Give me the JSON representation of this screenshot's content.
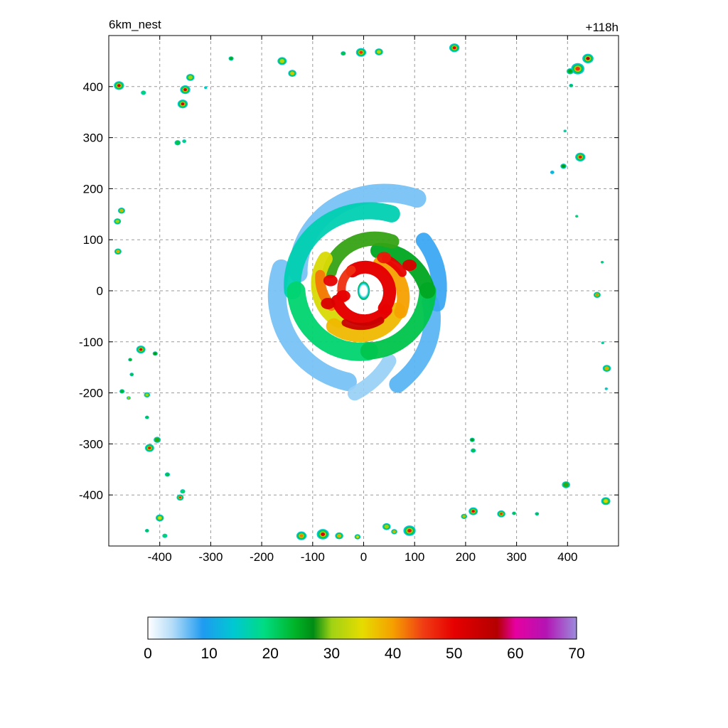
{
  "header": {
    "left_label": "6km_nest",
    "right_label": "+118h"
  },
  "chart_data": {
    "type": "heatmap",
    "title": "",
    "xlabel": "",
    "ylabel": "",
    "xlim": [
      -500,
      500
    ],
    "ylim": [
      -500,
      500
    ],
    "x_ticks": [
      -400,
      -300,
      -200,
      -100,
      0,
      100,
      200,
      300,
      400
    ],
    "y_ticks": [
      -400,
      -300,
      -200,
      -100,
      0,
      100,
      200,
      300,
      400
    ],
    "grid": true,
    "colorbar": {
      "min": 0,
      "max": 70,
      "ticks": [
        0,
        10,
        20,
        30,
        40,
        50,
        60,
        70
      ],
      "stops": [
        {
          "v": 0,
          "color": "#ffffff"
        },
        {
          "v": 4,
          "color": "#b4dcf8"
        },
        {
          "v": 9,
          "color": "#1e9bf0"
        },
        {
          "v": 14,
          "color": "#00c8d2"
        },
        {
          "v": 19,
          "color": "#00dc82"
        },
        {
          "v": 24,
          "color": "#00b428"
        },
        {
          "v": 27,
          "color": "#008c14"
        },
        {
          "v": 30,
          "color": "#a0d214"
        },
        {
          "v": 35,
          "color": "#e6dc00"
        },
        {
          "v": 40,
          "color": "#f5a000"
        },
        {
          "v": 45,
          "color": "#f03c14"
        },
        {
          "v": 50,
          "color": "#e60000"
        },
        {
          "v": 57,
          "color": "#b40000"
        },
        {
          "v": 60,
          "color": "#e600a0"
        },
        {
          "v": 65,
          "color": "#b414b4"
        },
        {
          "v": 70,
          "color": "#9b8cdc"
        }
      ]
    },
    "cells": [
      {
        "x": 0,
        "y": 0,
        "r": 12,
        "v": 0
      },
      {
        "x": -480,
        "y": 402,
        "r": 10,
        "v": 52
      },
      {
        "x": -432,
        "y": 388,
        "r": 5,
        "v": 20
      },
      {
        "x": -340,
        "y": 418,
        "r": 8,
        "v": 30
      },
      {
        "x": -350,
        "y": 394,
        "r": 10,
        "v": 52
      },
      {
        "x": -355,
        "y": 366,
        "r": 10,
        "v": 52
      },
      {
        "x": -260,
        "y": 455,
        "r": 5,
        "v": 25
      },
      {
        "x": -160,
        "y": 450,
        "r": 9,
        "v": 32
      },
      {
        "x": -140,
        "y": 426,
        "r": 8,
        "v": 38
      },
      {
        "x": -310,
        "y": 398,
        "r": 3,
        "v": 15
      },
      {
        "x": -365,
        "y": 290,
        "r": 6,
        "v": 22
      },
      {
        "x": -352,
        "y": 293,
        "r": 4,
        "v": 20
      },
      {
        "x": -40,
        "y": 465,
        "r": 5,
        "v": 22
      },
      {
        "x": -5,
        "y": 467,
        "r": 10,
        "v": 46
      },
      {
        "x": 30,
        "y": 468,
        "r": 8,
        "v": 32
      },
      {
        "x": 178,
        "y": 476,
        "r": 10,
        "v": 50
      },
      {
        "x": 440,
        "y": 455,
        "r": 11,
        "v": 56
      },
      {
        "x": 420,
        "y": 435,
        "r": 13,
        "v": 46
      },
      {
        "x": 405,
        "y": 430,
        "r": 7,
        "v": 25
      },
      {
        "x": 407,
        "y": 402,
        "r": 4,
        "v": 22
      },
      {
        "x": 395,
        "y": 313,
        "r": 3,
        "v": 18
      },
      {
        "x": 425,
        "y": 262,
        "r": 10,
        "v": 48
      },
      {
        "x": 392,
        "y": 244,
        "r": 6,
        "v": 26
      },
      {
        "x": 370,
        "y": 232,
        "r": 4,
        "v": 12
      },
      {
        "x": 418,
        "y": 146,
        "r": 3,
        "v": 20
      },
      {
        "x": -475,
        "y": 157,
        "r": 7,
        "v": 40
      },
      {
        "x": -483,
        "y": 136,
        "r": 7,
        "v": 30
      },
      {
        "x": -482,
        "y": 77,
        "r": 7,
        "v": 40
      },
      {
        "x": 468,
        "y": 56,
        "r": 3,
        "v": 20
      },
      {
        "x": 458,
        "y": -8,
        "r": 7,
        "v": 42
      },
      {
        "x": 469,
        "y": -102,
        "r": 3,
        "v": 18
      },
      {
        "x": 477,
        "y": -152,
        "r": 8,
        "v": 40
      },
      {
        "x": 476,
        "y": -192,
        "r": 3,
        "v": 15
      },
      {
        "x": -437,
        "y": -115,
        "r": 9,
        "v": 52
      },
      {
        "x": -409,
        "y": -123,
        "r": 5,
        "v": 26
      },
      {
        "x": -458,
        "y": -135,
        "r": 4,
        "v": 24
      },
      {
        "x": -455,
        "y": -164,
        "r": 4,
        "v": 22
      },
      {
        "x": -474,
        "y": -197,
        "r": 5,
        "v": 24
      },
      {
        "x": -461,
        "y": -210,
        "r": 4,
        "v": 30
      },
      {
        "x": -425,
        "y": -204,
        "r": 6,
        "v": 30
      },
      {
        "x": -425,
        "y": -248,
        "r": 4,
        "v": 22
      },
      {
        "x": -420,
        "y": -308,
        "r": 9,
        "v": 48
      },
      {
        "x": -405,
        "y": -292,
        "r": 7,
        "v": 28
      },
      {
        "x": -385,
        "y": -360,
        "r": 5,
        "v": 22
      },
      {
        "x": -360,
        "y": -405,
        "r": 7,
        "v": 46
      },
      {
        "x": -355,
        "y": -393,
        "r": 5,
        "v": 20
      },
      {
        "x": -400,
        "y": -445,
        "r": 8,
        "v": 34
      },
      {
        "x": -425,
        "y": -470,
        "r": 4,
        "v": 22
      },
      {
        "x": -390,
        "y": -480,
        "r": 5,
        "v": 20
      },
      {
        "x": 213,
        "y": -292,
        "r": 5,
        "v": 26
      },
      {
        "x": 215,
        "y": -313,
        "r": 5,
        "v": 22
      },
      {
        "x": 215,
        "y": -432,
        "r": 9,
        "v": 50
      },
      {
        "x": 197,
        "y": -442,
        "r": 6,
        "v": 40
      },
      {
        "x": 270,
        "y": -437,
        "r": 8,
        "v": 46
      },
      {
        "x": 295,
        "y": -436,
        "r": 4,
        "v": 22
      },
      {
        "x": 340,
        "y": -437,
        "r": 4,
        "v": 22
      },
      {
        "x": 397,
        "y": -380,
        "r": 8,
        "v": 28
      },
      {
        "x": 475,
        "y": -412,
        "r": 9,
        "v": 36
      },
      {
        "x": -122,
        "y": -480,
        "r": 10,
        "v": 42
      },
      {
        "x": -80,
        "y": -477,
        "r": 12,
        "v": 52
      },
      {
        "x": -48,
        "y": -480,
        "r": 8,
        "v": 40
      },
      {
        "x": -12,
        "y": -482,
        "r": 6,
        "v": 36
      },
      {
        "x": 45,
        "y": -462,
        "r": 8,
        "v": 30
      },
      {
        "x": 90,
        "y": -470,
        "r": 12,
        "v": 48
      },
      {
        "x": 60,
        "y": -472,
        "r": 6,
        "v": 40
      }
    ]
  }
}
